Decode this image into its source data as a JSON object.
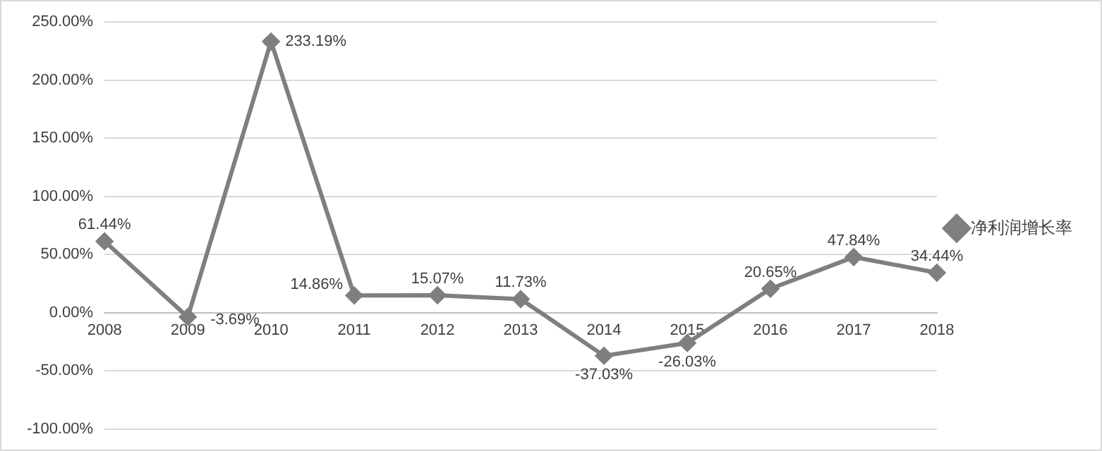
{
  "chart_data": {
    "type": "line",
    "categories": [
      "2008",
      "2009",
      "2010",
      "2011",
      "2012",
      "2013",
      "2014",
      "2015",
      "2016",
      "2017",
      "2018"
    ],
    "series": [
      {
        "name": "净利润增长率",
        "color": "#7f7f7f",
        "values": [
          61.44,
          -3.69,
          233.19,
          14.86,
          15.07,
          11.73,
          -37.03,
          -26.03,
          20.65,
          47.84,
          34.44
        ],
        "value_labels": [
          "61.44%",
          "-3.69%",
          "233.19%",
          "14.86%",
          "15.07%",
          "11.73%",
          "-37.03%",
          "-26.03%",
          "20.65%",
          "47.84%",
          "34.44%"
        ]
      }
    ],
    "ylim": [
      -100,
      250
    ],
    "yticks": [
      {
        "value": -100,
        "label": "-100.00%"
      },
      {
        "value": -50,
        "label": "-50.00%"
      },
      {
        "value": 0,
        "label": "0.00%"
      },
      {
        "value": 50,
        "label": "50.00%"
      },
      {
        "value": 100,
        "label": "100.00%"
      },
      {
        "value": 150,
        "label": "150.00%"
      },
      {
        "value": 200,
        "label": "200.00%"
      },
      {
        "value": 250,
        "label": "250.00%"
      }
    ],
    "grid": "y",
    "legend": "right",
    "marker": "diamond",
    "line_style": "solid"
  }
}
